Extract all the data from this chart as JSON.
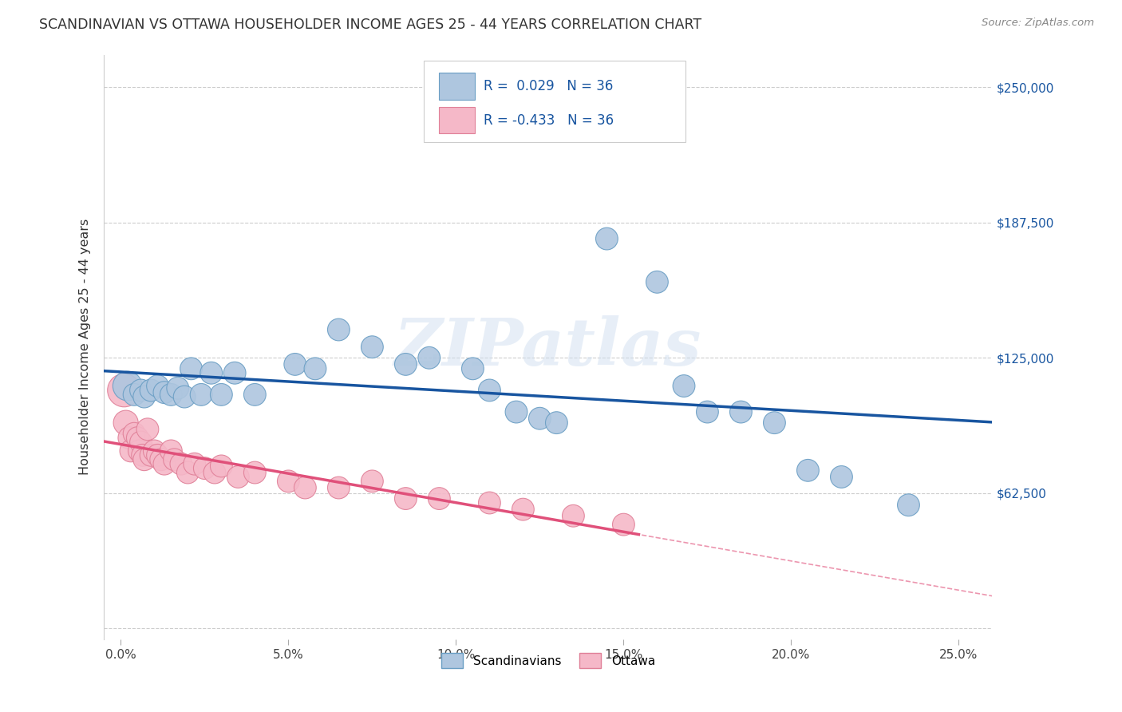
{
  "title": "SCANDINAVIAN VS OTTAWA HOUSEHOLDER INCOME AGES 25 - 44 YEARS CORRELATION CHART",
  "source": "Source: ZipAtlas.com",
  "xlabel_vals": [
    0.0,
    5.0,
    10.0,
    15.0,
    20.0,
    25.0
  ],
  "ylabel_ticks": [
    "$62,500",
    "$125,000",
    "$187,500",
    "$250,000"
  ],
  "ylabel_vals": [
    62500,
    125000,
    187500,
    250000
  ],
  "ylim": [
    -5000,
    265000
  ],
  "xlim": [
    -0.5,
    26.0
  ],
  "ylabel": "Householder Income Ages 25 - 44 years",
  "scandinavian_R": 0.029,
  "scandinavian_N": 36,
  "ottawa_R": -0.433,
  "ottawa_N": 36,
  "scandinavian_color": "#aec6df",
  "ottawa_color": "#f5b8c8",
  "scandinavian_edge_color": "#6a9ec4",
  "ottawa_edge_color": "#e08098",
  "scandinavian_line_color": "#1855a0",
  "ottawa_line_color": "#e0507a",
  "watermark_color": "#d0dff0",
  "scandinavian_x": [
    0.2,
    0.4,
    0.6,
    0.7,
    0.9,
    1.1,
    1.3,
    1.5,
    1.7,
    1.9,
    2.1,
    2.4,
    2.7,
    3.0,
    3.4,
    4.0,
    5.2,
    5.8,
    6.5,
    7.5,
    8.5,
    9.2,
    10.5,
    11.0,
    11.8,
    12.5,
    13.0,
    14.5,
    16.0,
    16.8,
    17.5,
    18.5,
    19.5,
    20.5,
    21.5,
    23.5
  ],
  "scandinavian_y": [
    112000,
    108000,
    110000,
    107000,
    110000,
    112000,
    109000,
    108000,
    111000,
    107000,
    120000,
    108000,
    118000,
    108000,
    118000,
    108000,
    122000,
    120000,
    138000,
    130000,
    122000,
    125000,
    120000,
    110000,
    100000,
    97000,
    95000,
    180000,
    160000,
    112000,
    100000,
    100000,
    95000,
    73000,
    70000,
    57000
  ],
  "ottawa_x": [
    0.1,
    0.15,
    0.25,
    0.3,
    0.4,
    0.5,
    0.55,
    0.6,
    0.65,
    0.7,
    0.8,
    0.9,
    1.0,
    1.1,
    1.2,
    1.3,
    1.5,
    1.6,
    1.8,
    2.0,
    2.2,
    2.5,
    2.8,
    3.0,
    3.5,
    4.0,
    5.0,
    5.5,
    6.5,
    7.5,
    8.5,
    9.5,
    11.0,
    12.0,
    13.5,
    15.0
  ],
  "ottawa_y": [
    110000,
    95000,
    88000,
    82000,
    90000,
    88000,
    82000,
    86000,
    80000,
    78000,
    92000,
    80000,
    82000,
    80000,
    78000,
    76000,
    82000,
    78000,
    76000,
    72000,
    76000,
    74000,
    72000,
    75000,
    70000,
    72000,
    68000,
    65000,
    65000,
    68000,
    60000,
    60000,
    58000,
    55000,
    52000,
    48000
  ],
  "scandinavian_sizes": [
    700,
    400,
    400,
    400,
    400,
    400,
    400,
    400,
    400,
    400,
    400,
    400,
    400,
    400,
    400,
    400,
    400,
    400,
    400,
    400,
    400,
    400,
    400,
    400,
    400,
    400,
    400,
    400,
    400,
    400,
    400,
    400,
    400,
    400,
    400,
    400
  ],
  "ottawa_sizes": [
    900,
    500,
    400,
    400,
    400,
    400,
    400,
    400,
    400,
    400,
    400,
    400,
    400,
    400,
    400,
    400,
    400,
    400,
    400,
    400,
    400,
    400,
    400,
    400,
    400,
    400,
    400,
    400,
    400,
    400,
    400,
    400,
    400,
    400,
    400,
    400
  ]
}
